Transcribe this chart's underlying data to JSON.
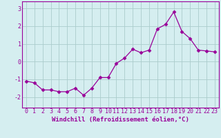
{
  "x": [
    0,
    1,
    2,
    3,
    4,
    5,
    6,
    7,
    8,
    9,
    10,
    11,
    12,
    13,
    14,
    15,
    16,
    17,
    18,
    19,
    20,
    21,
    22,
    23
  ],
  "y": [
    -1.1,
    -1.2,
    -1.6,
    -1.6,
    -1.7,
    -1.7,
    -1.5,
    -1.9,
    -1.5,
    -0.9,
    -0.9,
    -0.1,
    0.2,
    0.7,
    0.5,
    0.65,
    1.85,
    2.1,
    2.8,
    1.7,
    1.3,
    0.65,
    0.6,
    0.55
  ],
  "line_color": "#990099",
  "marker": "D",
  "marker_size": 2.5,
  "bg_color": "#d5eef0",
  "grid_color": "#aacccc",
  "xlabel": "Windchill (Refroidissement éolien,°C)",
  "xlabel_fontsize": 6.5,
  "tick_fontsize": 6.0,
  "ylabel_ticks": [
    3,
    2,
    1,
    0,
    -1,
    -2
  ],
  "ylim": [
    -2.6,
    3.4
  ],
  "xlim": [
    -0.5,
    23.5
  ]
}
